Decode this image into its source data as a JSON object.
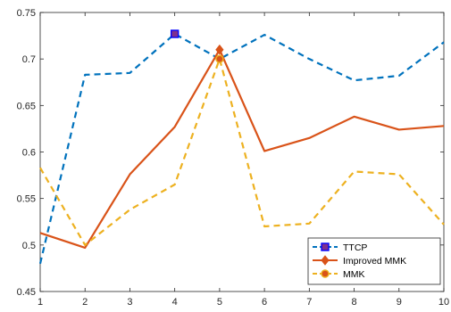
{
  "chart_data": {
    "type": "line",
    "title": "",
    "xlabel": "",
    "ylabel": "",
    "x": [
      1,
      2,
      3,
      4,
      5,
      6,
      7,
      8,
      9,
      10
    ],
    "xlim": [
      1,
      10
    ],
    "ylim": [
      0.45,
      0.75
    ],
    "xticks": [
      "1",
      "2",
      "3",
      "4",
      "5",
      "6",
      "7",
      "8",
      "9",
      "10"
    ],
    "yticks": [
      "0.45",
      "0.5",
      "0.55",
      "0.6",
      "0.65",
      "0.7",
      "0.75"
    ],
    "grid": false,
    "legend_position": "bottom-right",
    "series": [
      {
        "name": "TTCP",
        "color": "#0072BD",
        "line_style": "dashed",
        "marker": "square",
        "marker_fill": "#7E2F8E",
        "marker_edge": "#0000FF",
        "marker_at": [
          4
        ],
        "values": [
          0.48,
          0.683,
          0.685,
          0.727,
          0.7,
          0.726,
          0.7,
          0.677,
          0.682,
          0.718
        ]
      },
      {
        "name": "Improved MMK",
        "color": "#D95319",
        "line_style": "solid",
        "marker": "diamond",
        "marker_fill": "#D95319",
        "marker_edge": "#D95319",
        "marker_at": [
          5
        ],
        "values": [
          0.513,
          0.497,
          0.576,
          0.627,
          0.71,
          0.601,
          0.615,
          0.638,
          0.624,
          0.628
        ]
      },
      {
        "name": "MMK",
        "color": "#EDB120",
        "line_style": "dashed",
        "marker": "circle",
        "marker_fill": "#D95319",
        "marker_edge": "#EDB120",
        "marker_at": [
          5
        ],
        "values": [
          0.583,
          0.5,
          0.538,
          0.565,
          0.7,
          0.52,
          0.523,
          0.579,
          0.576,
          0.522
        ]
      }
    ]
  }
}
